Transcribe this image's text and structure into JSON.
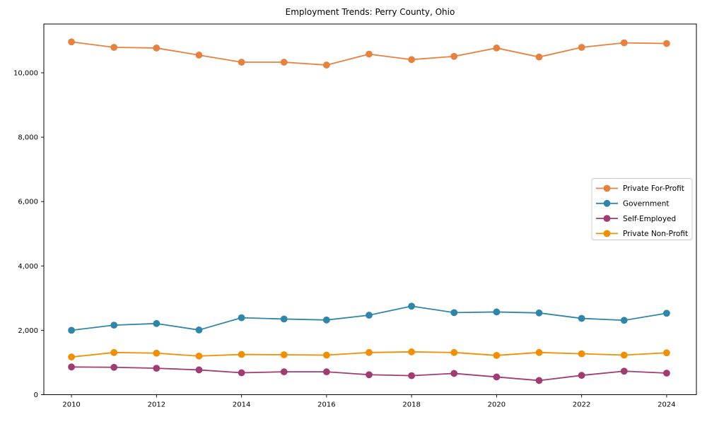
{
  "chart_data": {
    "type": "line",
    "title": "Employment Trends: Perry County, Ohio",
    "xlabel": "",
    "ylabel": "",
    "grid": false,
    "legend_position": "center-right",
    "background_color": "#ffffff",
    "axis_color": "#000000",
    "x": [
      2010,
      2011,
      2012,
      2013,
      2014,
      2015,
      2016,
      2017,
      2018,
      2019,
      2020,
      2021,
      2022,
      2023,
      2024
    ],
    "xticks": [
      2010,
      2012,
      2014,
      2016,
      2018,
      2020,
      2022,
      2024
    ],
    "xtick_labels": [
      "2010",
      "2012",
      "2014",
      "2016",
      "2018",
      "2020",
      "2022",
      "2024"
    ],
    "yticks": [
      0,
      2000,
      4000,
      6000,
      8000,
      10000
    ],
    "ytick_labels": [
      "0",
      "2,000",
      "4,000",
      "6,000",
      "8,000",
      "10,000"
    ],
    "xlim": [
      2009.35,
      2024.7
    ],
    "ylim": [
      0,
      11515
    ],
    "series": [
      {
        "name": "Private For-Profit",
        "color": "#E8813E",
        "values": [
          10960,
          10790,
          10770,
          10550,
          10330,
          10330,
          10240,
          10580,
          10410,
          10510,
          10770,
          10490,
          10790,
          10930,
          10910
        ]
      },
      {
        "name": "Government",
        "color": "#2E86AB",
        "values": [
          2000,
          2160,
          2210,
          2010,
          2390,
          2350,
          2320,
          2470,
          2750,
          2550,
          2570,
          2540,
          2370,
          2310,
          2530
        ]
      },
      {
        "name": "Self-Employed",
        "color": "#A23B72",
        "values": [
          860,
          850,
          820,
          770,
          680,
          710,
          710,
          620,
          590,
          660,
          550,
          440,
          600,
          730,
          670
        ]
      },
      {
        "name": "Private Non-Profit",
        "color": "#F18F01",
        "values": [
          1170,
          1310,
          1290,
          1200,
          1250,
          1240,
          1230,
          1310,
          1330,
          1310,
          1220,
          1310,
          1270,
          1230,
          1300
        ]
      }
    ]
  }
}
